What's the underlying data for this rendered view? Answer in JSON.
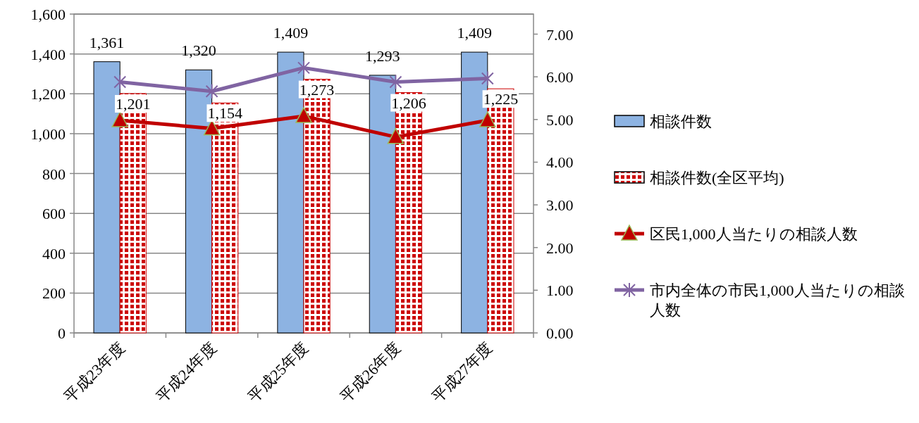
{
  "chart_data": {
    "type": "bar",
    "categories": [
      "平成23年度",
      "平成24年度",
      "平成25年度",
      "平成26年度",
      "平成27年度"
    ],
    "series": [
      {
        "name": "相談件数",
        "color": "#8db3e2",
        "values": [
          1361,
          1320,
          1409,
          1293,
          1409
        ],
        "value_labels": [
          "1,361",
          "1,320",
          "1,409",
          "1,293",
          "1,409"
        ]
      },
      {
        "name": "相談件数(全区平均)",
        "color": "#cc0000",
        "values": [
          1201,
          1154,
          1273,
          1206,
          1225
        ],
        "value_labels": [
          "1,201",
          "1,154",
          "1,273",
          "1,206",
          "1,225"
        ]
      },
      {
        "name": "区民1,000人当たりの相談人数",
        "type": "line",
        "axis": "y2",
        "color": "#c00000",
        "marker": "triangle",
        "values": [
          4.98,
          4.79,
          5.08,
          4.59,
          4.98
        ]
      },
      {
        "name": "市内全体の市民1,000人当たりの相談人数",
        "type": "line",
        "axis": "y2",
        "color": "#8064a2",
        "marker": "cross",
        "values": [
          5.88,
          5.66,
          6.21,
          5.88,
          5.96
        ]
      }
    ],
    "ylim": [
      0,
      1600
    ],
    "yticks": [
      {
        "value": 0,
        "label": "0"
      },
      {
        "value": 200,
        "label": "200"
      },
      {
        "value": 400,
        "label": "400"
      },
      {
        "value": 600,
        "label": "600"
      },
      {
        "value": 800,
        "label": "800"
      },
      {
        "value": 1000,
        "label": "1,000"
      },
      {
        "value": 1200,
        "label": "1,200"
      },
      {
        "value": 1400,
        "label": "1,400"
      },
      {
        "value": 1600,
        "label": "1,600"
      }
    ],
    "y2lim": [
      0,
      7.47
    ],
    "y2ticks": [
      {
        "value": 0,
        "label": "0.00"
      },
      {
        "value": 1,
        "label": "1.00"
      },
      {
        "value": 2,
        "label": "2.00"
      },
      {
        "value": 3,
        "label": "3.00"
      },
      {
        "value": 4,
        "label": "4.00"
      },
      {
        "value": 5,
        "label": "5.00"
      },
      {
        "value": 6,
        "label": "6.00"
      },
      {
        "value": 7,
        "label": "7.00"
      }
    ],
    "grid": "y",
    "legend": "right"
  }
}
